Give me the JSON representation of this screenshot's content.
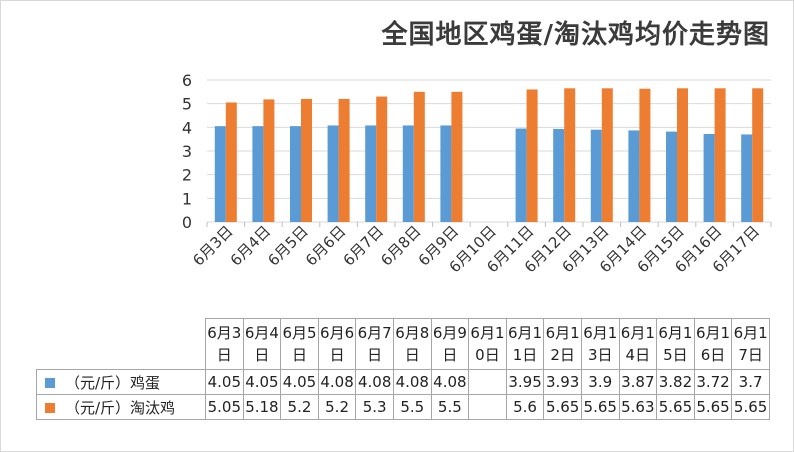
{
  "chart_data": {
    "type": "bar",
    "title": "全国地区鸡蛋/淘汰鸡均价走势图",
    "categories": [
      "6月3日",
      "6月4日",
      "6月5日",
      "6月6日",
      "6月7日",
      "6月8日",
      "6月9日",
      "6月10日",
      "6月11日",
      "6月12日",
      "6月13日",
      "6月14日",
      "6月15日",
      "6月16日",
      "6月17日"
    ],
    "series": [
      {
        "name": "（元/斤）鸡蛋",
        "color": "#5b9bd5",
        "values": [
          4.05,
          4.05,
          4.05,
          4.08,
          4.08,
          4.08,
          4.08,
          null,
          3.95,
          3.93,
          3.9,
          3.87,
          3.82,
          3.72,
          3.7
        ]
      },
      {
        "name": "（元/斤）淘汰鸡",
        "color": "#ed7d31",
        "values": [
          5.05,
          5.18,
          5.2,
          5.2,
          5.3,
          5.5,
          5.5,
          null,
          5.6,
          5.65,
          5.65,
          5.63,
          5.65,
          5.65,
          5.65
        ]
      }
    ],
    "table_values": [
      [
        "4.05",
        "4.05",
        "4.05",
        "4.08",
        "4.08",
        "4.08",
        "4.08",
        "",
        "3.95",
        "3.93",
        "3.9",
        "3.87",
        "3.82",
        "3.72",
        "3.7"
      ],
      [
        "5.05",
        "5.18",
        "5.2",
        "5.2",
        "5.3",
        "5.5",
        "5.5",
        "",
        "5.6",
        "5.65",
        "5.65",
        "5.63",
        "5.65",
        "5.65",
        "5.65"
      ]
    ],
    "ylim": [
      0,
      6
    ],
    "yticks": [
      0,
      1,
      2,
      3,
      4,
      5,
      6
    ],
    "grid": true,
    "legend": "data-table"
  }
}
